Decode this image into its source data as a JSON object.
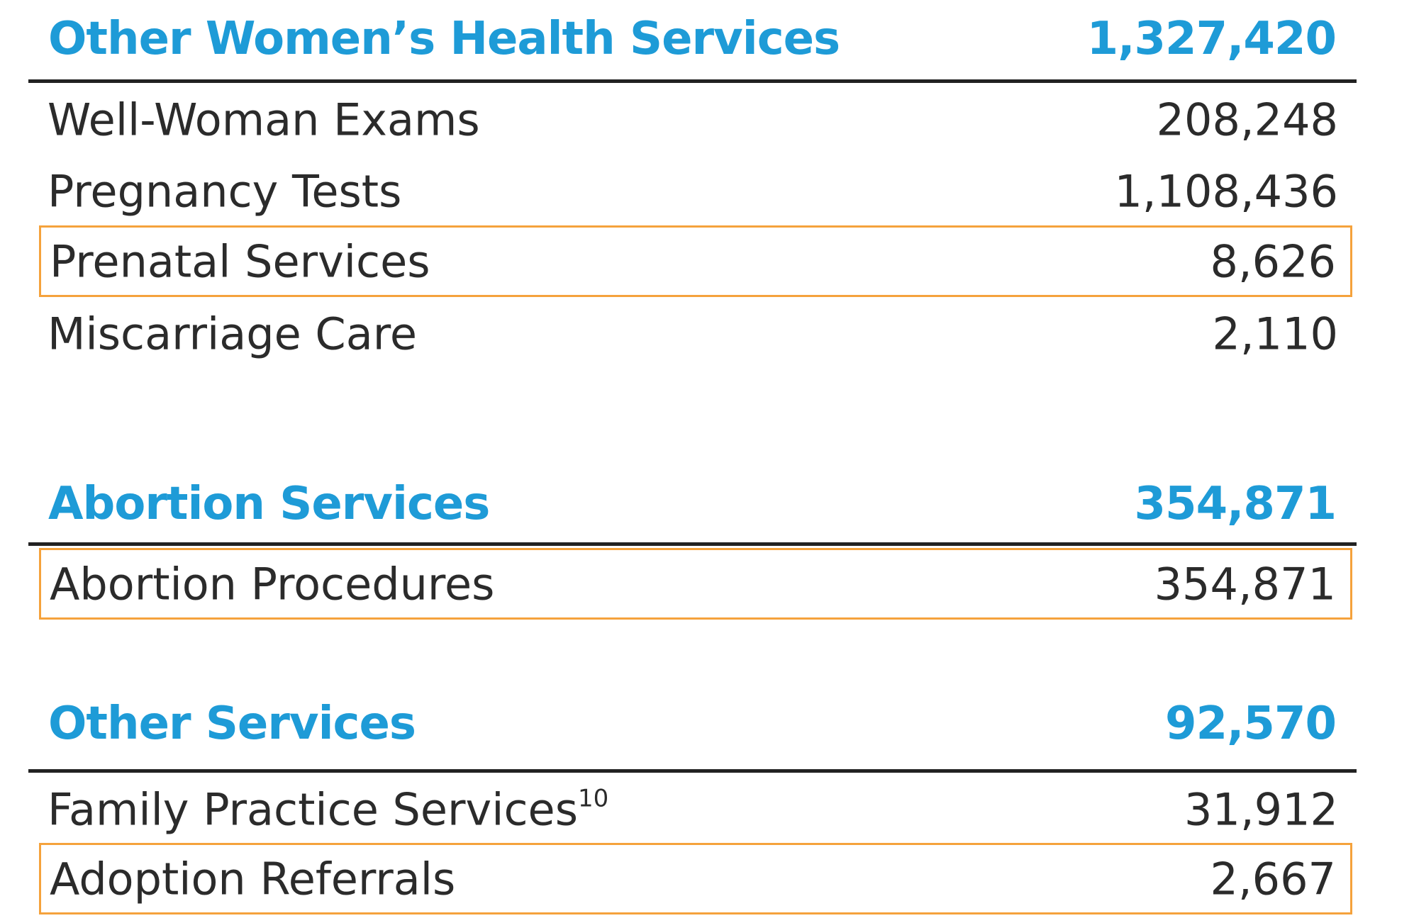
{
  "sections": [
    {
      "title": "Other Women’s Health Services",
      "total": "1,327,420",
      "rows": [
        {
          "label": "Well-Woman Exams",
          "value": "208,248",
          "highlighted": false
        },
        {
          "label": "Pregnancy Tests",
          "value": "1,108,436",
          "highlighted": false
        },
        {
          "label": "Prenatal Services",
          "value": "8,626",
          "highlighted": true
        },
        {
          "label": "Miscarriage Care",
          "value": "2,110",
          "highlighted": false
        }
      ]
    },
    {
      "title": "Abortion Services",
      "total": "354,871",
      "rows": [
        {
          "label": "Abortion Procedures",
          "value": "354,871",
          "highlighted": true
        }
      ]
    },
    {
      "title": "Other Services",
      "total": "92,570",
      "rows": [
        {
          "label": "Family Practice Services",
          "footnote": "10",
          "value": "31,912",
          "highlighted": false
        },
        {
          "label": "Adoption Referrals",
          "value": "2,667",
          "highlighted": true
        }
      ]
    }
  ],
  "colors": {
    "heading": "#1e9bd7",
    "text": "#2b2b2b",
    "rule": "#222222",
    "highlight": "#f5a23c"
  }
}
